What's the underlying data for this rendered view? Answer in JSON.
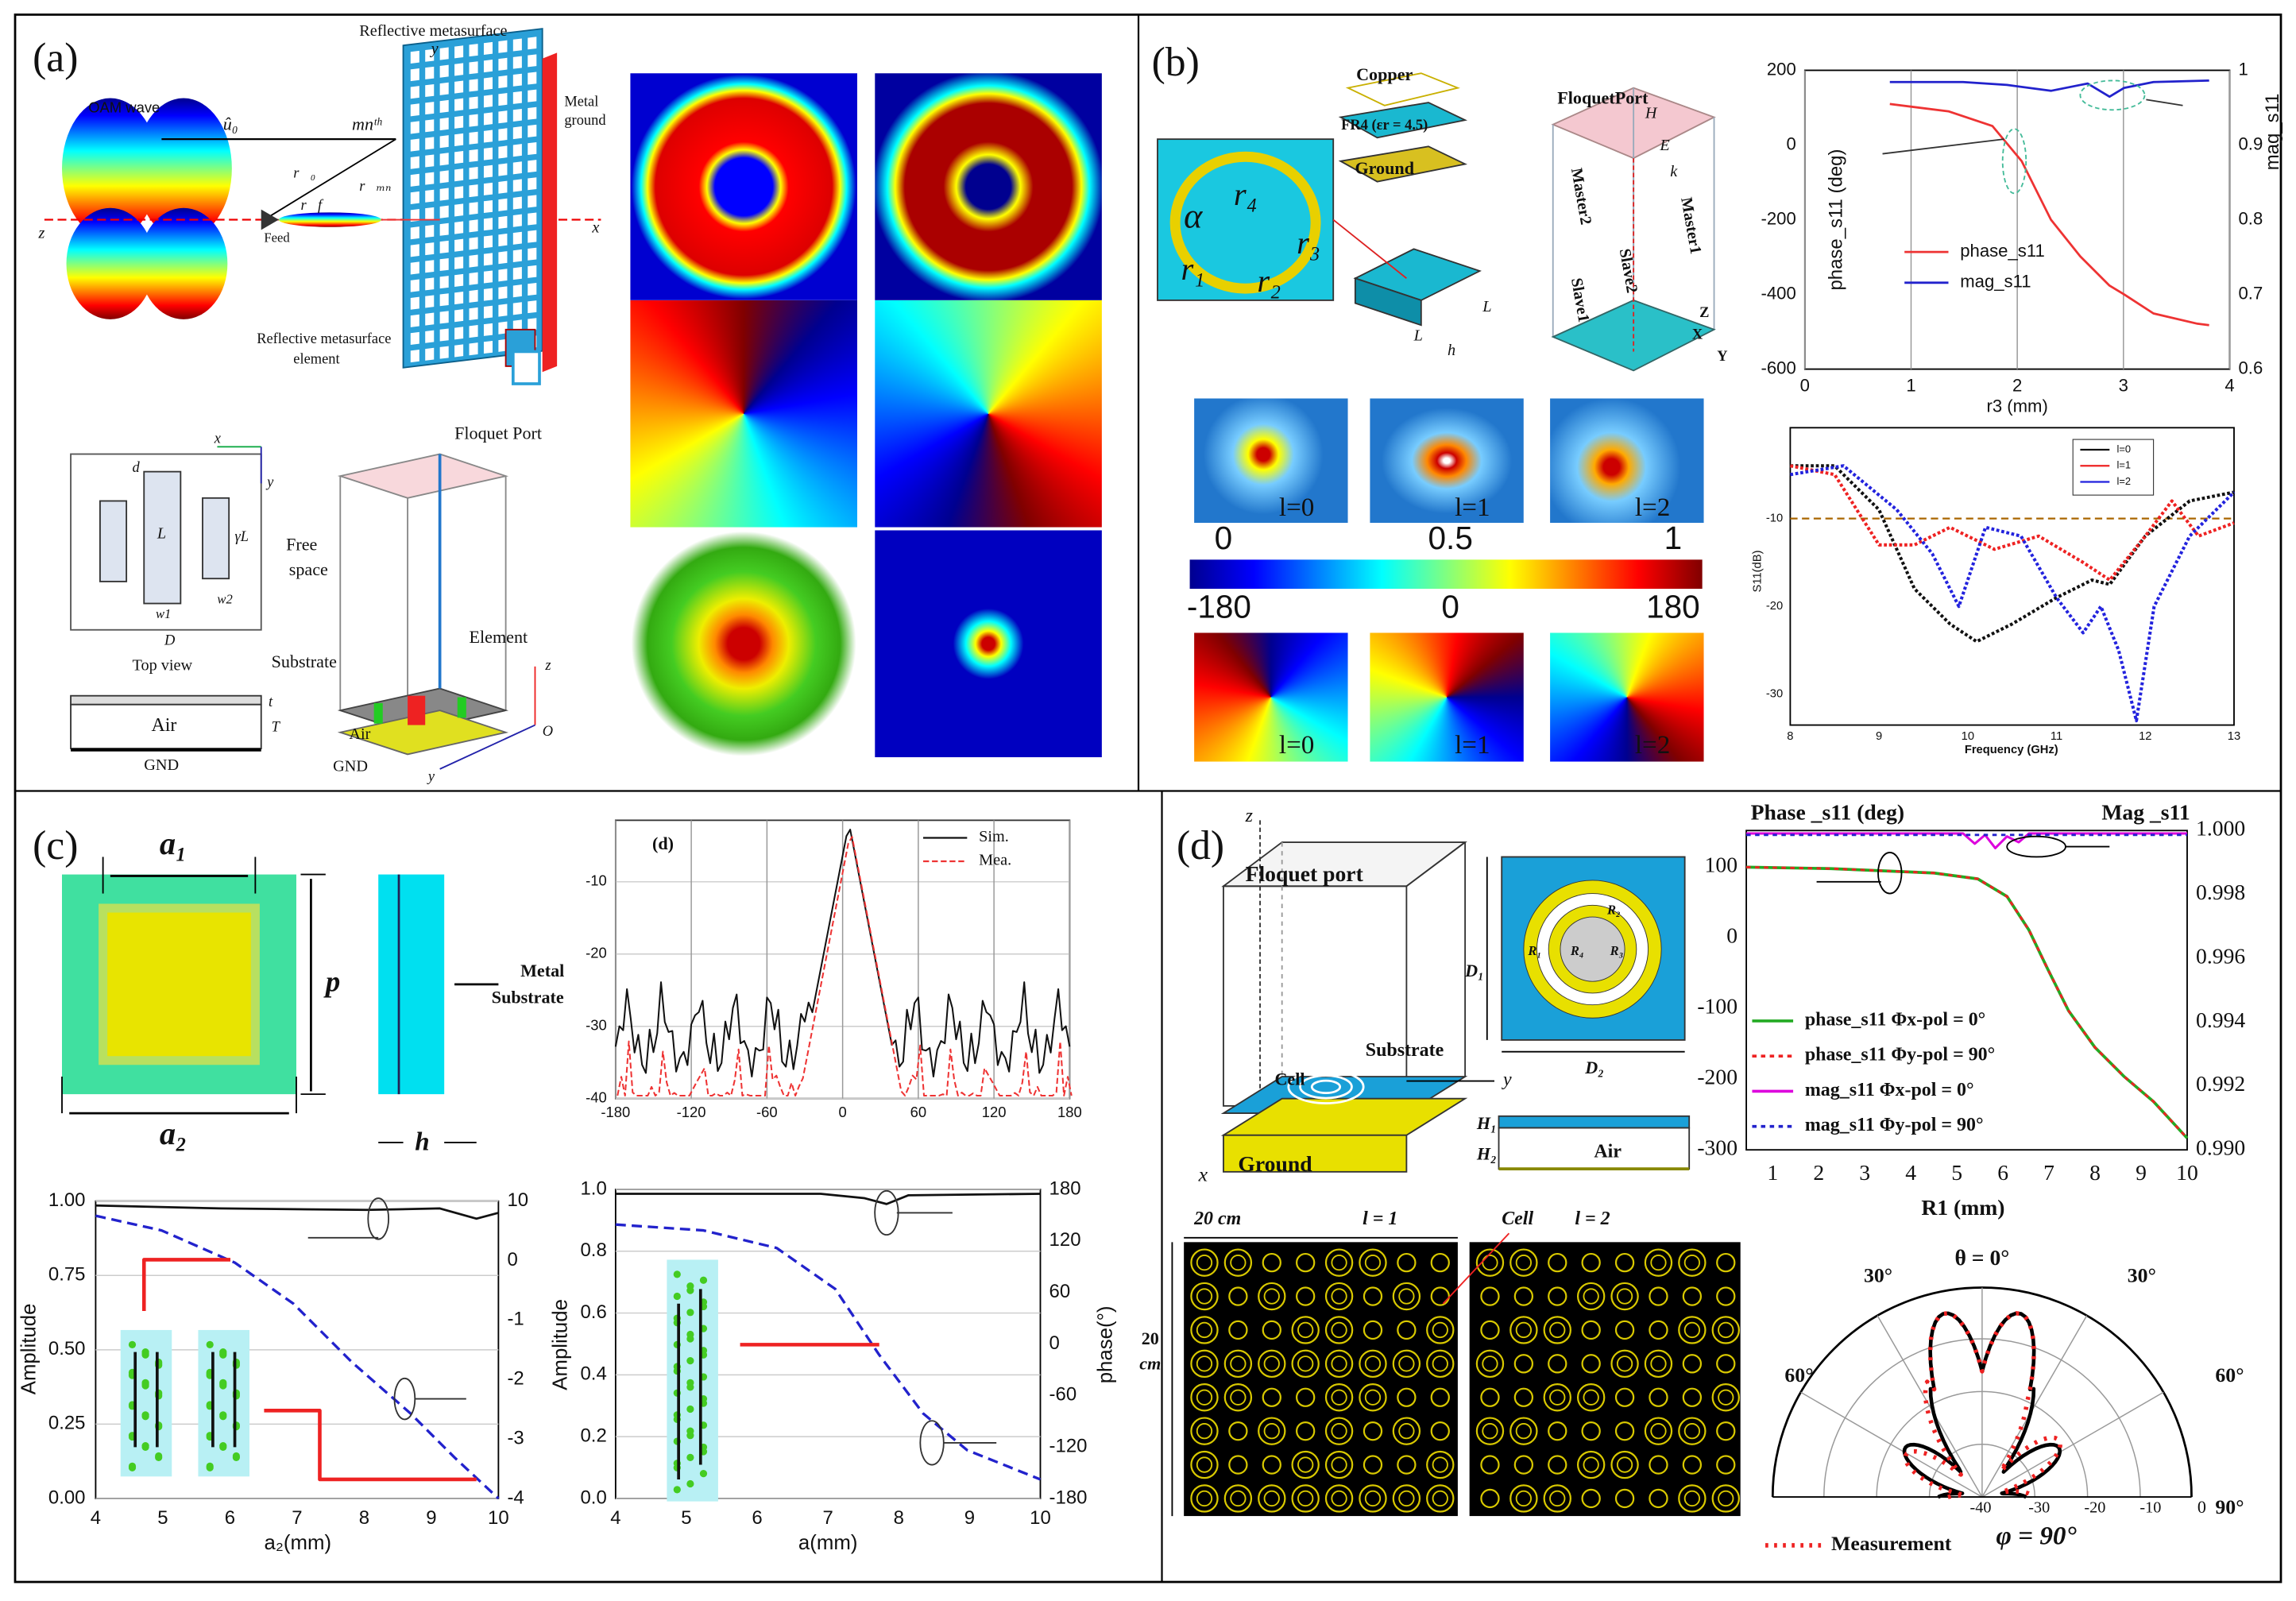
{
  "a": {
    "labels": [
      "(a)",
      "Reflective metasurface",
      "Metal",
      "ground",
      "OAM wave",
      "û₀",
      "mnᵗʰ",
      "r⃗₀",
      "r⃗ₘₙ",
      "r⃗f",
      "Feed",
      "z",
      "x",
      "y",
      "Reflective metasurface",
      "element",
      "Floquet  Port",
      "x",
      "y",
      "d",
      "L",
      "γL",
      "w1",
      "w2",
      "D",
      "Top view",
      "t",
      "T",
      "Air",
      "GND",
      "Free",
      "space",
      "Substrate",
      "Element",
      "z",
      "O",
      "Air",
      "GND",
      "y"
    ]
  },
  "b": {
    "labels": [
      "(b)",
      "Copper",
      "FR4 (εr = 4.5)",
      "Ground",
      "α",
      "r₄",
      "r₃",
      "r₁",
      "r₂",
      "L",
      "L",
      "h",
      "FloquetPort",
      "H",
      "E",
      "k",
      "Master2",
      "Master1",
      "Slave1",
      "Slave2",
      "Z",
      "X",
      "Y",
      "l=0",
      "l=1",
      "l=2",
      "0",
      "0.5",
      "1",
      "-180",
      "0",
      "180",
      "l=0",
      "l=1",
      "l=2"
    ],
    "chart1": {
      "yticks": [
        200,
        0,
        -200,
        -400,
        -600
      ],
      "y2ticks": [
        1,
        0.9,
        0.8,
        0.7,
        0.6
      ],
      "xticks": [
        0,
        1,
        2,
        3,
        4
      ],
      "ylabel": "phase_s11 (deg)",
      "y2label": "mag_s11",
      "xlabel": "r3 (mm)",
      "legend": [
        "phase_s11",
        "mag_s11"
      ]
    },
    "chart2": {
      "yticks": [
        -10,
        -20,
        -30
      ],
      "xticks": [
        8,
        9,
        10,
        11,
        12,
        13
      ],
      "ylabel": "S11(dB)",
      "xlabel": "Frequency (GHz)",
      "legend": [
        "l=0",
        "l=1",
        "l=2"
      ]
    }
  },
  "c": {
    "labels": [
      "(c)",
      "a₁",
      "p",
      "a₂",
      "Metal",
      "Substrate",
      "h"
    ],
    "chart_inset": {
      "label": "(d)",
      "yticks": [
        -10,
        -20,
        -30,
        -40
      ],
      "xticks": [
        -180,
        -120,
        -60,
        0,
        60,
        120,
        180
      ],
      "legend": [
        "Sim.",
        "Mea."
      ]
    },
    "chart_left": {
      "yticks": [
        "1.00",
        "0.75",
        "0.50",
        "0.25",
        "0.00"
      ],
      "y2ticks": [
        10,
        0,
        -1,
        -2,
        -3,
        -4
      ],
      "xticks": [
        4,
        5,
        6,
        7,
        8,
        9,
        10
      ],
      "ylabel": "Amplitude",
      "xlabel": "a₂(mm)"
    },
    "chart_right": {
      "yticks": [
        "1.0",
        "0.8",
        "0.6",
        "0.4",
        "0.2",
        "0.0"
      ],
      "y2ticks": [
        180,
        120,
        60,
        0,
        -60,
        -120,
        -180
      ],
      "xticks": [
        4,
        5,
        6,
        7,
        8,
        9,
        10
      ],
      "ylabel": "Amplitude",
      "y2label": "phase(°)",
      "xlabel": "a(mm)"
    }
  },
  "d": {
    "labels": [
      "(d)",
      "z",
      "Floquet port",
      "Substrate",
      "Cell",
      "y",
      "Ground",
      "x",
      "D₁",
      "D₂",
      "R₁",
      "R₂",
      "R₃",
      "R₄",
      "H₁",
      "H₂",
      "Air",
      "20 cm",
      "l = 1",
      "Cell",
      "l = 2",
      "20",
      "cm"
    ],
    "chart": {
      "ylabel": "Phase _s11 (deg)",
      "y2label": "Mag _s11",
      "yticks": [
        100,
        0,
        -100,
        -200,
        -300
      ],
      "y2ticks": [
        "1.000",
        "0.998",
        "0.996",
        "0.994",
        "0.992",
        "0.990"
      ],
      "xticks": [
        1,
        2,
        3,
        4,
        5,
        6,
        7,
        8,
        9,
        10
      ],
      "xlabel": "R1 (mm)",
      "legend": [
        "phase_s11  Φx-pol = 0°",
        "phase_s11  Φy-pol = 90°",
        "mag_s11  Φx-pol = 0°",
        "mag_s11  Φy-pol = 90°"
      ]
    },
    "polar": {
      "labels": [
        "θ = 0°",
        "30°",
        "30°",
        "60°",
        "60°",
        "-40",
        "-30",
        "-20",
        "-10",
        "0",
        "90°"
      ],
      "legend": "Measurement",
      "title": "φ = 90°"
    }
  }
}
